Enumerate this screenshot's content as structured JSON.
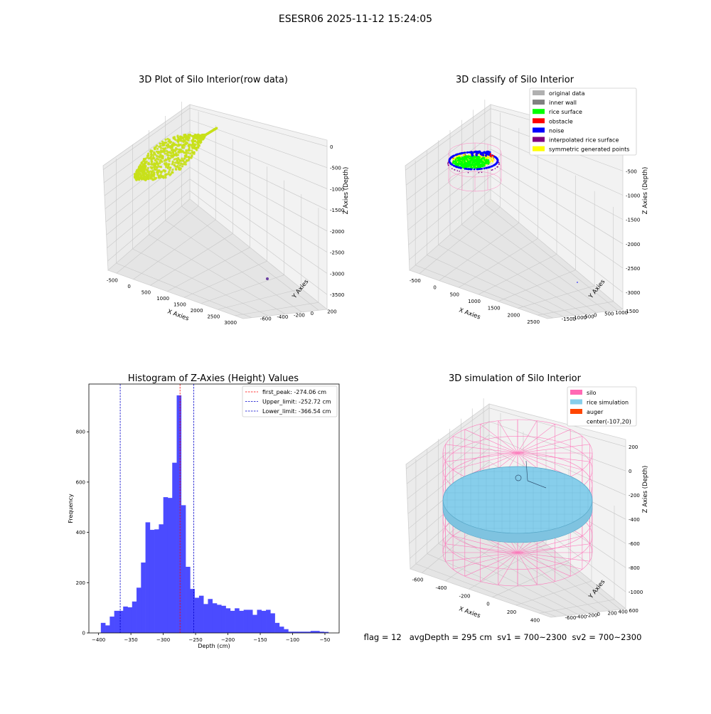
{
  "figure": {
    "suptitle": "ESESR06 2025-11-12 15:24:05",
    "footer": "flag = 12   avgDepth = 295 cm  sv1 = 700~2300  sv2 = 700~2300"
  },
  "colors": {
    "hist_bar": "#4b4bff",
    "peak_line": "#ff0000",
    "limit_line": "#0000cc",
    "silo": "#ff69b4",
    "rice_sim": "#87ceeb",
    "auger": "#ff4500",
    "raw_points": "#c8e01a"
  },
  "chart_data": [
    {
      "type": "scatter",
      "kind": "3d",
      "title": "3D Plot of Silo Interior(row data)",
      "xlabel": "X Axies",
      "ylabel": "Y Axies",
      "zlabel": "Z Axies (Depth)",
      "x_ticks": [
        "-500",
        "0",
        "500",
        "1000",
        "1500",
        "2000",
        "2500",
        "3000"
      ],
      "y_ticks": [
        "200",
        "0",
        "-200",
        "-400",
        "-600"
      ],
      "z_ticks": [
        "0",
        "-500",
        "-1000",
        "-1500",
        "-2000",
        "-2500",
        "-3000",
        "-3500"
      ],
      "xlim": [
        -700,
        3000
      ],
      "ylim": [
        -650,
        300
      ],
      "zlim": [
        -3600,
        100
      ],
      "grid": true
    },
    {
      "type": "scatter",
      "kind": "3d",
      "title": "3D classify of Silo Interior",
      "xlabel": "X Axies",
      "ylabel": "Y Axies",
      "zlabel": "Z Axies (Depth)",
      "x_ticks": [
        "-500",
        "0",
        "500",
        "1000",
        "1500",
        "2000",
        "2500"
      ],
      "y_ticks": [
        "1500",
        "1000",
        "500",
        "0",
        "-500",
        "-1000",
        "-1500"
      ],
      "z_ticks": [
        "0",
        "-500",
        "-1000",
        "-1500",
        "-2000",
        "-2500",
        "-3000"
      ],
      "legend_position": "top-right",
      "legend": [
        {
          "label": "original data",
          "color": "#b0b0b0"
        },
        {
          "label": "inner wall",
          "color": "#808080"
        },
        {
          "label": "rice surface",
          "color": "#00ff00"
        },
        {
          "label": "obstacle",
          "color": "#ff0000"
        },
        {
          "label": "noise",
          "color": "#0000ff"
        },
        {
          "label": "interpolated rice surface",
          "color": "#800080"
        },
        {
          "label": "symmetric generated points",
          "color": "#ffff00"
        }
      ],
      "grid": true
    },
    {
      "type": "bar",
      "kind": "histogram",
      "title": "Histogram of Z-Axies (Height) Values",
      "xlabel": "Depth (cm)",
      "ylabel": "Frequency",
      "xlim": [
        -415,
        -28
      ],
      "ylim": [
        0,
        990
      ],
      "x_ticks": [
        -400,
        -350,
        -300,
        -250,
        -200,
        -150,
        -100,
        -50
      ],
      "y_ticks": [
        0,
        200,
        400,
        600,
        800
      ],
      "bin_width": 6.9,
      "bins_start": -396.5,
      "values": [
        40,
        30,
        65,
        88,
        88,
        105,
        102,
        125,
        180,
        280,
        440,
        410,
        412,
        432,
        540,
        537,
        677,
        945,
        508,
        263,
        175,
        140,
        148,
        115,
        135,
        118,
        112,
        108,
        98,
        88,
        98,
        88,
        92,
        92,
        72,
        92,
        88,
        92,
        78,
        40,
        25,
        15,
        5,
        5,
        5,
        5,
        5,
        8,
        8,
        5,
        4
      ],
      "vlines": [
        {
          "label": "first_peak: -274.06 cm",
          "x": -274.06,
          "color": "#ff0000"
        },
        {
          "label": "Upper_limit: -252.72 cm",
          "x": -252.72,
          "color": "#0000cc"
        },
        {
          "label": "Lower_limit: -366.54 cm",
          "x": -366.54,
          "color": "#0000cc"
        }
      ],
      "legend_position": "top-right"
    },
    {
      "type": "scatter",
      "kind": "3d",
      "title": "3D simulation of Silo Interior",
      "xlabel": "X Axies",
      "ylabel": "Y Axies",
      "zlabel": "Z Axies (Depth)",
      "x_ticks": [
        "-600",
        "-400",
        "-200",
        "0",
        "200",
        "400"
      ],
      "y_ticks": [
        "600",
        "400",
        "200",
        "0",
        "-200",
        "-400",
        "-600"
      ],
      "z_ticks": [
        "200",
        "0",
        "-200",
        "-400",
        "-600",
        "-800",
        "-1000"
      ],
      "legend_position": "top-right",
      "legend": [
        {
          "label": "silo",
          "color": "#ff69b4"
        },
        {
          "label": "rice simulation",
          "color": "#87ceeb"
        },
        {
          "label": "auger",
          "color": "#ff4500"
        },
        {
          "label": "center(-107,20)",
          "color": ""
        }
      ],
      "grid": true
    }
  ]
}
